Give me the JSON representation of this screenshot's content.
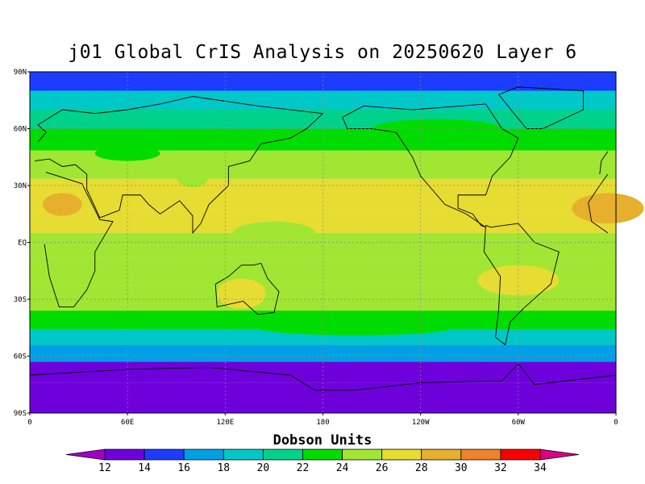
{
  "title": "j01 Global CrIS Analysis on 20250620 Layer 6",
  "colorbar": {
    "label": "Dobson Units",
    "ticks": [
      "12",
      "14",
      "16",
      "18",
      "20",
      "22",
      "24",
      "26",
      "28",
      "30",
      "32",
      "34"
    ],
    "colors": [
      "#a000c8",
      "#6e00dc",
      "#1e3cff",
      "#00a0e6",
      "#00c8c8",
      "#00d28c",
      "#00dc00",
      "#a0e632",
      "#e6dc32",
      "#e6af2d",
      "#f08228",
      "#fa0000",
      "#dc0082"
    ]
  },
  "axes": {
    "lat_labels": [
      "90N",
      "60N",
      "30N",
      "EQ",
      "30S",
      "60S",
      "90S"
    ],
    "lon_labels": [
      "0",
      "60E",
      "120E",
      "180",
      "120W",
      "60W",
      "0"
    ]
  },
  "chart_data": {
    "type": "heatmap",
    "title": "j01 Global CrIS Analysis on 20250620 Layer 6",
    "units": "Dobson Units",
    "value_range": [
      12,
      34
    ],
    "bands": [
      {
        "lat": 85,
        "value": 15
      },
      {
        "lat": 75,
        "value": 18
      },
      {
        "lat": 65,
        "value": 21
      },
      {
        "lat": 55,
        "value": 23
      },
      {
        "lat": 42,
        "value": 24
      },
      {
        "lat": 25,
        "value": 26
      },
      {
        "lat": 10,
        "value": 26
      },
      {
        "lat": 0,
        "value": 25
      },
      {
        "lat": -15,
        "value": 25
      },
      {
        "lat": -30,
        "value": 24
      },
      {
        "lat": -42,
        "value": 22
      },
      {
        "lat": -50,
        "value": 19
      },
      {
        "lat": -58,
        "value": 16
      },
      {
        "lat": -68,
        "value": 13
      },
      {
        "lat": -80,
        "value": 12
      }
    ],
    "grid": true
  }
}
